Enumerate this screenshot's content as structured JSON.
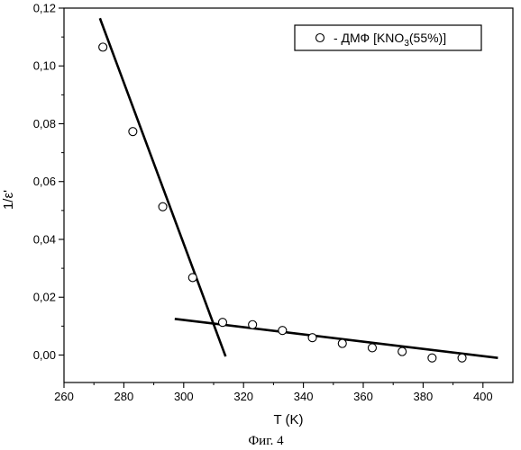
{
  "chart_data": {
    "type": "scatter",
    "xlabel": "T (K)",
    "ylabel": "1/ε'",
    "xlim": [
      260,
      410
    ],
    "ylim": [
      -0.0095,
      0.12
    ],
    "x_ticks": [
      260,
      280,
      300,
      320,
      340,
      360,
      380,
      400
    ],
    "y_ticks": [
      0.0,
      0.02,
      0.04,
      0.06,
      0.08,
      0.1,
      0.12
    ],
    "x_tick_labels": [
      "260",
      "280",
      "300",
      "320",
      "340",
      "360",
      "380",
      "400"
    ],
    "y_tick_labels": [
      "0,00",
      "0,02",
      "0,04",
      "0,06",
      "0,08",
      "0,10",
      "0,12"
    ],
    "grid": false,
    "legend_position": "top-right",
    "series": [
      {
        "name": "ДМФ [KNO3(55%)]",
        "marker": "open-circle",
        "x": [
          273,
          283,
          293,
          303,
          313,
          323,
          333,
          343,
          353,
          363,
          373,
          383,
          393
        ],
        "y": [
          0.1065,
          0.0773,
          0.0513,
          0.0268,
          0.0113,
          0.0105,
          0.0085,
          0.006,
          0.004,
          0.0025,
          0.0012,
          -0.001,
          -0.001
        ]
      }
    ],
    "fit_lines": [
      {
        "x": [
          272,
          314
        ],
        "y": [
          0.1165,
          -0.0005
        ]
      },
      {
        "x": [
          297,
          405
        ],
        "y": [
          0.0125,
          -0.001
        ]
      }
    ],
    "legend_label": {
      "prefix": "- ДМФ [KNO",
      "subscript": "3",
      "suffix": "(55%)]"
    }
  },
  "caption": "Фиг. 4"
}
